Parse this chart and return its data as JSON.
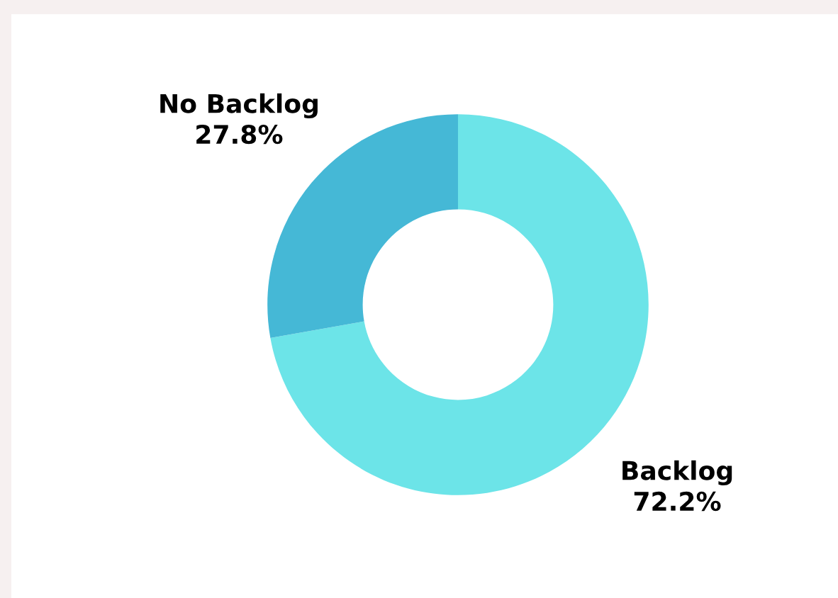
{
  "chart_data": {
    "type": "donut",
    "categories": [
      "Backlog",
      "No Backlog"
    ],
    "values": [
      72.2,
      27.8
    ],
    "value_labels": [
      "72.2%",
      "27.8%"
    ],
    "colors": [
      "#6ce4e8",
      "#45b8d6"
    ],
    "legend": false
  }
}
